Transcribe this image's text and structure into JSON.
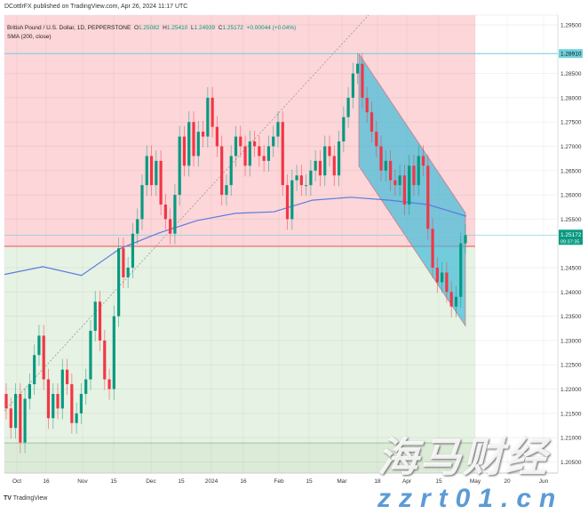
{
  "published": "DCottlrFX published on TradingView.com, Apr 26, 2024 11:17 UTC",
  "legend": {
    "symbol": "British Pound / U.S. Dollar, 1D, PEPPERSTONE",
    "o_label": "O",
    "o": "1.25082",
    "h_label": "H",
    "h": "1.25410",
    "l_label": "L",
    "l": "1.24939",
    "c_label": "C",
    "c": "1.25172",
    "change": "+0.00044 (+0.04%)",
    "sma": "SMA (200, close)"
  },
  "footer": {
    "logo": "TradingView"
  },
  "watermark": {
    "cn": "海马财经",
    "url": "zzrt01.cn"
  },
  "colors": {
    "up": "#089981",
    "down": "#f23645",
    "sma": "#5b7be0",
    "channel": "#40bcd8",
    "pink_zone": "#fcd6d9",
    "green_zone": "#e6f2e3",
    "level": "#6fd0de",
    "red_line": "#ef5350"
  },
  "chart_data": {
    "type": "candlestick",
    "ylim": [
      1.2025,
      1.2975
    ],
    "y_ticks": [
      "1.29500",
      "1.28500",
      "1.28000",
      "1.27500",
      "1.27000",
      "1.26500",
      "1.26000",
      "1.25500",
      "1.24500",
      "1.24000",
      "1.23500",
      "1.23000",
      "1.22500",
      "1.22000",
      "1.21500",
      "1.21000",
      "1.20500"
    ],
    "x_ticks": [
      "Oct",
      "16",
      "Nov",
      "15",
      "Dec",
      "15",
      "2024",
      "16",
      "Feb",
      "15",
      "Mar",
      "18",
      "Apr",
      "15",
      "May",
      "20",
      "Jun"
    ],
    "close": [
      1.216,
      1.212,
      1.219,
      1.209,
      1.218,
      1.221,
      1.227,
      1.231,
      1.222,
      1.214,
      1.219,
      1.216,
      1.224,
      1.221,
      1.213,
      1.215,
      1.219,
      1.222,
      1.232,
      1.238,
      1.23,
      1.222,
      1.22,
      1.235,
      1.249,
      1.243,
      1.245,
      1.252,
      1.255,
      1.262,
      1.268,
      1.262,
      1.267,
      1.258,
      1.255,
      1.252,
      1.26,
      1.272,
      1.266,
      1.275,
      1.268,
      1.273,
      1.272,
      1.28,
      1.274,
      1.27,
      1.26,
      1.262,
      1.268,
      1.272,
      1.27,
      1.266,
      1.271,
      1.27,
      1.268,
      1.267,
      1.27,
      1.272,
      1.275,
      1.262,
      1.255,
      1.263,
      1.264,
      1.262,
      1.262,
      1.265,
      1.267,
      1.264,
      1.27,
      1.268,
      1.264,
      1.271,
      1.276,
      1.28,
      1.285,
      1.287,
      1.28,
      1.277,
      1.273,
      1.27,
      1.265,
      1.267,
      1.263,
      1.262,
      1.264,
      1.258,
      1.266,
      1.262,
      1.268,
      1.266,
      1.253,
      1.245,
      1.242,
      1.244,
      1.24,
      1.237,
      1.239,
      1.25,
      1.25172
    ],
    "sma200": [
      1.2436,
      1.2452,
      1.2434,
      1.2489,
      1.2521,
      1.2547,
      1.2562,
      1.2565,
      1.2589,
      1.2595,
      1.2589,
      1.258,
      1.2556
    ],
    "levels": {
      "resistance": "1.28910",
      "last_price": "1.25172",
      "countdown": "09:37:35",
      "zone_split": 1.2494,
      "zone_bottom": 1.2089
    },
    "channel": {
      "start_high": 1.2891,
      "end_high": 1.2563,
      "end_low": 1.233,
      "start_low": 1.2659
    }
  }
}
